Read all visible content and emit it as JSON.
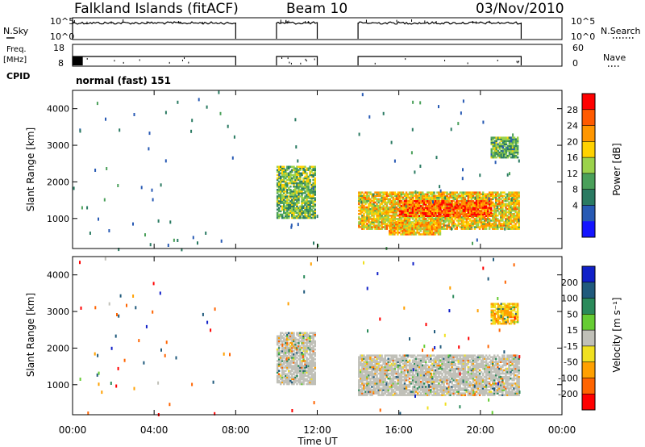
{
  "header": {
    "station": "Falkland Islands (fitACF)",
    "beam": "Beam 10",
    "date": "03/Nov/2010"
  },
  "side_labels": {
    "nsky": "N.Sky",
    "nsearch": "N.Search",
    "freq_line1": "Freq.",
    "freq_line2": "[MHz]",
    "nave": "Nave",
    "cpid": "CPID",
    "cpid_value": "normal (fast) 151"
  },
  "small_panels": {
    "noise": {
      "left_ticks": [
        "10^5",
        "10^0"
      ],
      "right_ticks": [
        "10^5",
        "10^0"
      ]
    },
    "freq": {
      "left_ticks": [
        "18",
        "8"
      ],
      "right_ticks": [
        "60",
        "0"
      ]
    }
  },
  "axes": {
    "xlabel": "Time UT",
    "x_ticks": [
      "00:00",
      "04:00",
      "08:00",
      "12:00",
      "16:00",
      "20:00",
      "00:00"
    ],
    "x_tick_hours": [
      0,
      4,
      8,
      12,
      16,
      20,
      24
    ],
    "xlim_hours": [
      0,
      24
    ],
    "ylabel": "Slant Range [km]",
    "y_ticks": [
      "4000",
      "3000",
      "2000",
      "1000"
    ],
    "y_tick_values": [
      4000,
      3000,
      2000,
      1000
    ],
    "ylim_km": [
      180,
      4500
    ]
  },
  "colorbars": {
    "power": {
      "label": "Power [dB]",
      "ticks": [
        "28",
        "24",
        "20",
        "16",
        "12",
        "8",
        "4"
      ],
      "colors": [
        "#ff0000",
        "#ff5a00",
        "#ff9600",
        "#ffd200",
        "#9bd24b",
        "#4aa05a",
        "#2a7a62",
        "#285ab4",
        "#1414ff"
      ]
    },
    "velocity": {
      "label": "Velocity [m s⁻¹]",
      "ticks": [
        "200",
        "100",
        "50",
        "15",
        "-15",
        "-50",
        "-100",
        "-200"
      ],
      "colors": [
        "#1020c8",
        "#205a7c",
        "#2a8a5a",
        "#66cc33",
        "#c0c0b8",
        "#f0e020",
        "#ffa000",
        "#ff6400",
        "#ff0000"
      ]
    }
  },
  "chart_data": {
    "type": "heatmap",
    "title": "Falkland Islands (fitACF)",
    "xlabel": "Time UT",
    "ylabel": "Slant Range [km]",
    "xlim": [
      0,
      24
    ],
    "ylim": [
      180,
      4500
    ],
    "data_intervals_hours": [
      [
        0.0,
        8.0
      ],
      [
        10.0,
        12.0
      ],
      [
        14.0,
        22.0
      ]
    ],
    "power_features": [
      {
        "t_start": 10.0,
        "t_end": 11.9,
        "range_start_km": 1000,
        "range_end_km": 2400,
        "level_db": 14
      },
      {
        "t_start": 14.0,
        "t_end": 21.9,
        "range_start_km": 700,
        "range_end_km": 1700,
        "level_db": 20
      },
      {
        "t_start": 16.0,
        "t_end": 20.5,
        "range_start_km": 1050,
        "range_end_km": 1500,
        "level_db": 28
      },
      {
        "t_start": 15.5,
        "t_end": 18.0,
        "range_start_km": 550,
        "range_end_km": 900,
        "level_db": 22
      },
      {
        "t_start": 20.5,
        "t_end": 21.8,
        "range_start_km": 2650,
        "range_end_km": 3200,
        "level_db": 12
      }
    ],
    "velocity_features": [
      {
        "t_start": 10.0,
        "t_end": 11.9,
        "range_start_km": 1000,
        "range_end_km": 2400,
        "velocity_ms": 0
      },
      {
        "t_start": 14.0,
        "t_end": 21.9,
        "range_start_km": 700,
        "range_end_km": 1800,
        "velocity_ms": 0
      },
      {
        "t_start": 20.5,
        "t_end": 21.8,
        "range_start_km": 2650,
        "range_end_km": 3200,
        "velocity_ms": -30
      }
    ]
  }
}
